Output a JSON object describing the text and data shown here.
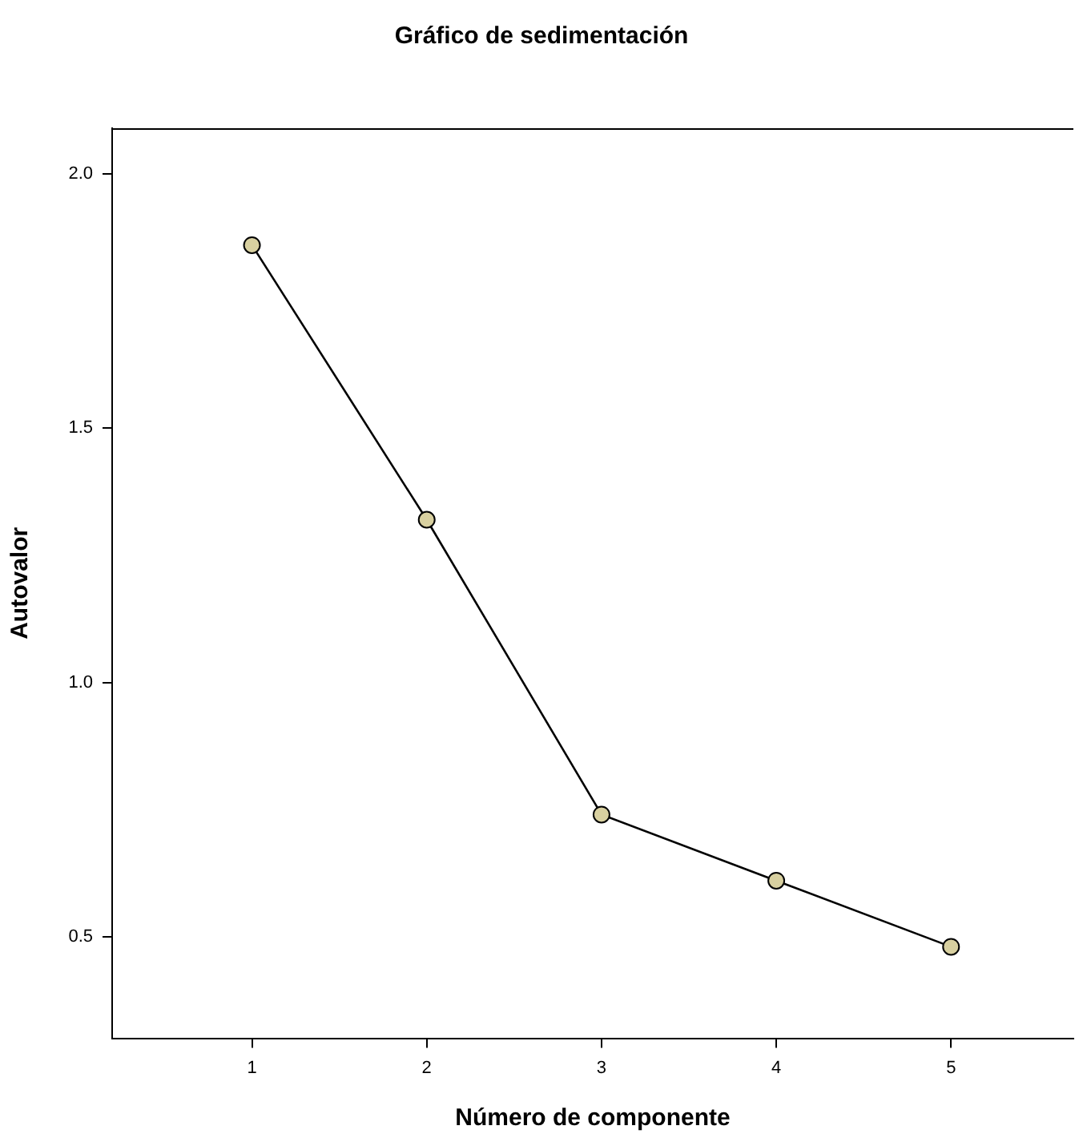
{
  "chart_data": {
    "type": "line",
    "title": "Gráfico de sedimentación",
    "xlabel": "Número de componente",
    "ylabel": "Autovalor",
    "x": [
      1,
      2,
      3,
      4,
      5
    ],
    "series": [
      {
        "color": "#000000",
        "values": [
          1.86,
          1.32,
          0.74,
          0.61,
          0.48
        ]
      }
    ],
    "xlim": [
      0.2,
      5.7
    ],
    "xticks": [
      1,
      2,
      3,
      4,
      5
    ],
    "ylim": [
      0.3,
      2.09
    ],
    "yticks": [
      {
        "value": 0.5,
        "label": "0.5"
      },
      {
        "value": 1.0,
        "label": "1.0"
      },
      {
        "value": 1.5,
        "label": "1.5"
      },
      {
        "value": 2.0,
        "label": "2.0"
      }
    ],
    "grid": false,
    "legend": false,
    "marker": "circle",
    "line_style": "solid"
  }
}
